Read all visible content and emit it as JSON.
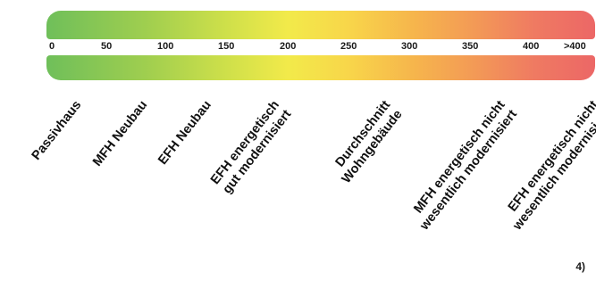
{
  "scale": {
    "ticks": [
      "0",
      "50",
      "100",
      "150",
      "200",
      "250",
      "300",
      "350",
      "400",
      ">400"
    ]
  },
  "categories": [
    {
      "lines": [
        "Passivhaus"
      ]
    },
    {
      "lines": [
        "MFH Neubau"
      ]
    },
    {
      "lines": [
        "EFH Neubau"
      ]
    },
    {
      "lines": [
        "EFH energetisch",
        "gut modernisiert"
      ]
    },
    {
      "lines": [
        "Durchschnitt",
        "Wohngebäude"
      ]
    },
    {
      "lines": [
        "MFH energetisch nicht",
        "wesentlich modernisiert"
      ]
    },
    {
      "lines": [
        "EFH energetisch nicht",
        "wesentlich modernisiert"
      ]
    }
  ],
  "footnote": "4)",
  "colors": {
    "low": "#6fbf5a",
    "mid": "#f2ea4a",
    "high": "#ec6766"
  }
}
